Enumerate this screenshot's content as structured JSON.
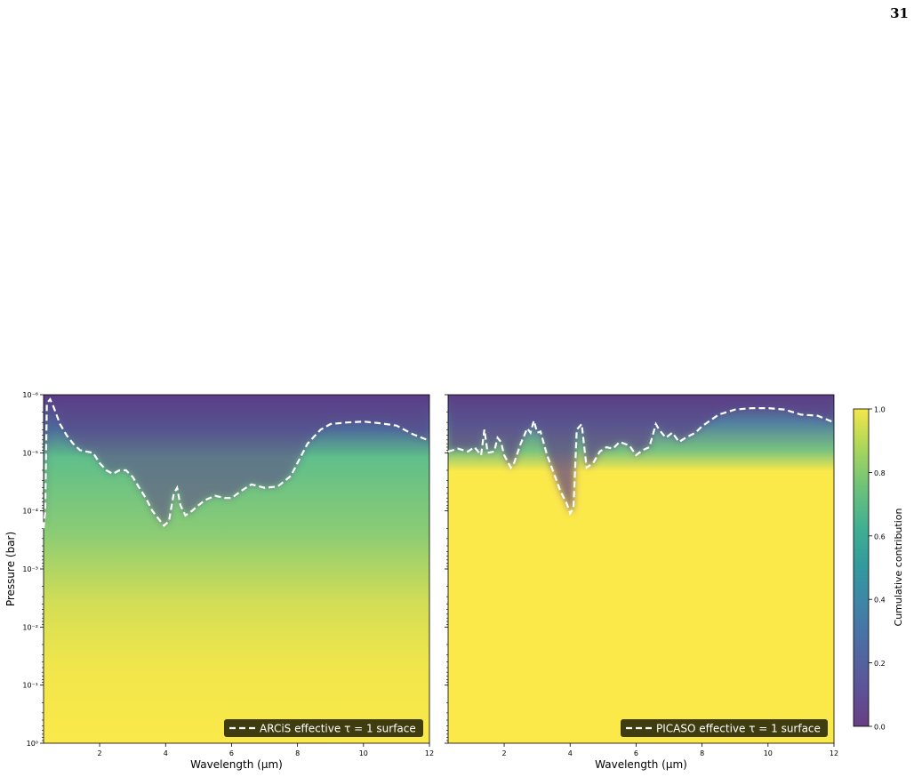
{
  "page_number": "31",
  "colors": {
    "viridis_low": "#440154",
    "viridis_mid": "#21918c",
    "viridis_high": "#fde725",
    "tau_line": "#ffffff",
    "legend_bg": "#2a2a0a"
  },
  "chart_data": [
    {
      "type": "heatmap",
      "panel": "left",
      "xlabel": "Wavelength (μm)",
      "ylabel": "Pressure (bar)",
      "xlim": [
        0.3,
        12
      ],
      "ylim": [
        1e-06,
        1
      ],
      "y_scale": "log",
      "y_inverted": true,
      "x_ticks": [
        2,
        4,
        6,
        8,
        10,
        12
      ],
      "y_ticks": [
        "10⁻⁶",
        "10⁻⁵",
        "10⁻⁴",
        "10⁻³",
        "10⁻²",
        "10⁻¹",
        "10⁰"
      ],
      "legend_placement": "bottom-right",
      "series": [
        {
          "name": "ARCiS effective τ = 1 surface",
          "style": "dashed",
          "color": "#ffffff",
          "x": [
            0.3,
            0.35,
            0.4,
            0.5,
            0.6,
            0.8,
            1.0,
            1.2,
            1.4,
            1.6,
            1.8,
            2.0,
            2.2,
            2.4,
            2.6,
            2.8,
            3.0,
            3.2,
            3.4,
            3.6,
            3.8,
            3.95,
            4.1,
            4.25,
            4.35,
            4.45,
            4.6,
            4.8,
            5.0,
            5.2,
            5.5,
            5.8,
            6.0,
            6.3,
            6.6,
            7.0,
            7.4,
            7.8,
            8.0,
            8.3,
            8.7,
            9.0,
            9.5,
            10.0,
            10.5,
            11.0,
            11.5,
            12.0
          ],
          "y": [
            0.0002,
            0.0001,
            1.4e-06,
            1.2e-06,
            1.6e-06,
            3.2e-06,
            5e-06,
            7e-06,
            9e-06,
            9.5e-06,
            1e-05,
            1.5e-05,
            2e-05,
            2.3e-05,
            2e-05,
            2e-05,
            2.6e-05,
            4e-05,
            6e-05,
            0.0001,
            0.00014,
            0.00018,
            0.00015,
            5e-05,
            4e-05,
            8e-05,
            0.00012,
            0.0001,
            8e-05,
            6.5e-05,
            5.5e-05,
            6e-05,
            6e-05,
            4.5e-05,
            3.5e-05,
            4e-05,
            3.8e-05,
            2.5e-05,
            1.5e-05,
            7e-06,
            4e-06,
            3.2e-06,
            3e-06,
            2.9e-06,
            3.1e-06,
            3.4e-06,
            4.8e-06,
            6.2e-06
          ]
        }
      ]
    },
    {
      "type": "heatmap",
      "panel": "right",
      "xlabel": "Wavelength (μm)",
      "xlim": [
        0.3,
        12
      ],
      "ylim": [
        1e-06,
        1
      ],
      "y_scale": "log",
      "y_inverted": true,
      "x_ticks": [
        2,
        4,
        6,
        8,
        10,
        12
      ],
      "legend_placement": "bottom-right",
      "series": [
        {
          "name": "PICASO effective τ = 1 surface",
          "style": "dashed",
          "color": "#ffffff",
          "x": [
            0.3,
            0.6,
            0.9,
            1.1,
            1.3,
            1.4,
            1.5,
            1.7,
            1.8,
            1.9,
            2.0,
            2.2,
            2.3,
            2.5,
            2.7,
            2.8,
            2.9,
            3.0,
            3.1,
            3.3,
            3.5,
            3.7,
            3.9,
            4.0,
            4.1,
            4.2,
            4.35,
            4.5,
            4.7,
            4.9,
            5.1,
            5.3,
            5.5,
            5.8,
            6.0,
            6.2,
            6.4,
            6.6,
            6.7,
            6.9,
            7.1,
            7.3,
            7.5,
            7.8,
            8.0,
            8.5,
            9.0,
            9.5,
            10.0,
            10.5,
            11.0,
            11.5,
            12.0
          ],
          "y": [
            9.5e-06,
            8.5e-06,
            9.5e-06,
            8e-06,
            1.1e-05,
            4e-06,
            1e-05,
            9.5e-06,
            5.5e-06,
            6.5e-06,
            1.1e-05,
            1.8e-05,
            1.5e-05,
            7e-06,
            3.8e-06,
            4.5e-06,
            2.8e-06,
            4.5e-06,
            4.3e-06,
            1.1e-05,
            2.2e-05,
            4.5e-05,
            7.5e-05,
            0.00011,
            9e-05,
            4e-06,
            3.2e-06,
            1.8e-05,
            1.5e-05,
            9.5e-06,
            8e-06,
            8.5e-06,
            6.5e-06,
            7.5e-06,
            1.1e-05,
            9e-06,
            8e-06,
            3.2e-06,
            4e-06,
            5.5e-06,
            4.5e-06,
            6.5e-06,
            5.5e-06,
            4.5e-06,
            3.5e-06,
            2.2e-06,
            1.8e-06,
            1.7e-06,
            1.7e-06,
            1.8e-06,
            2.2e-06,
            2.3e-06,
            3e-06
          ]
        }
      ]
    }
  ],
  "colorbar": {
    "label": "Cumulative contribution",
    "ticks": [
      "0.0",
      "0.2",
      "0.4",
      "0.6",
      "0.8",
      "1.0"
    ],
    "range": [
      0,
      1
    ]
  }
}
